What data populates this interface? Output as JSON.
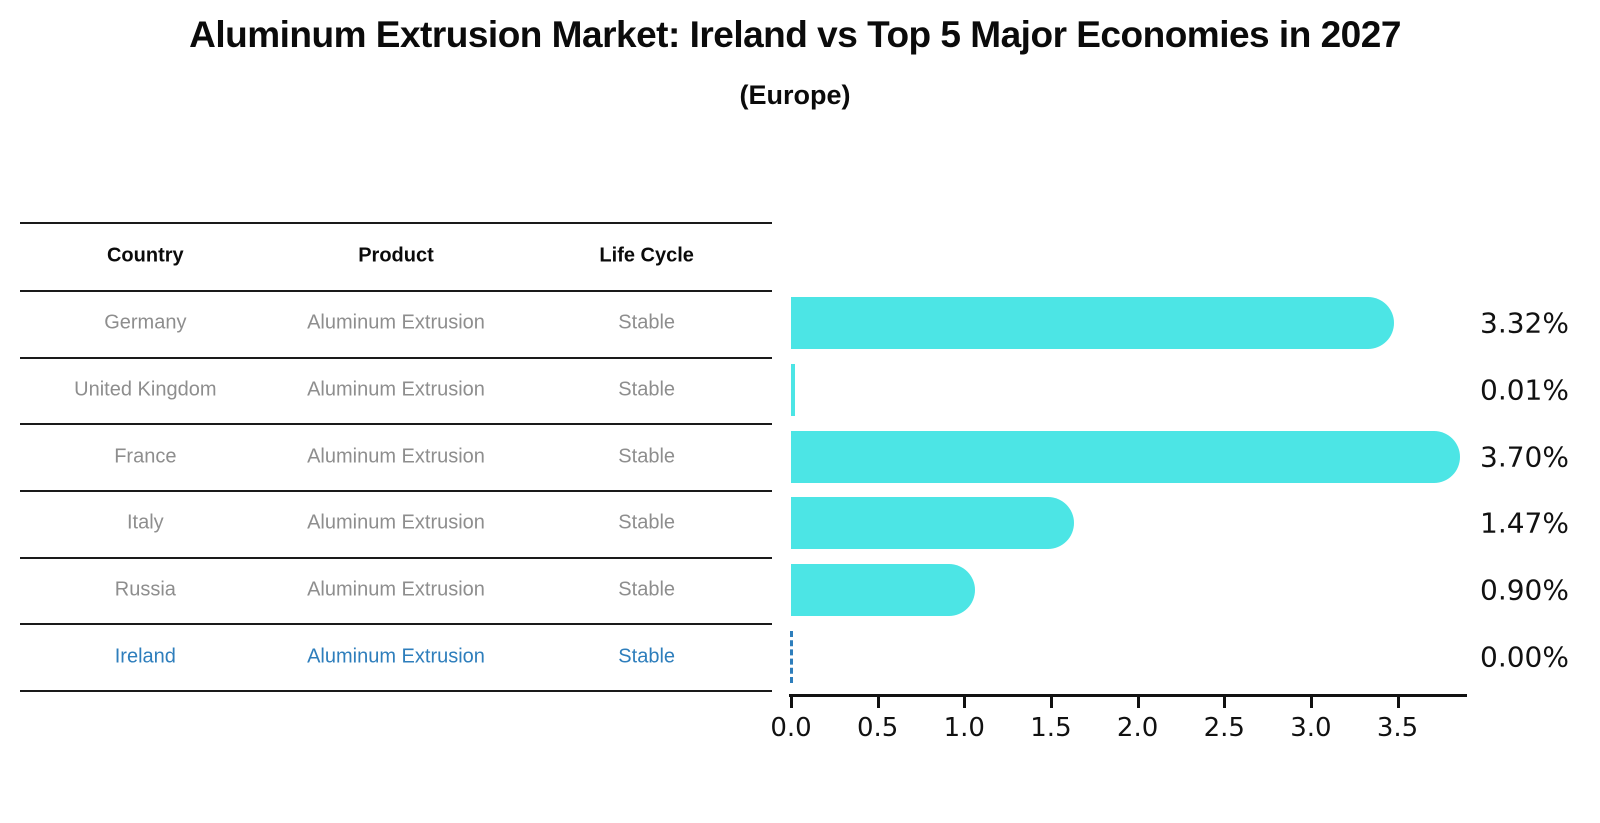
{
  "header": {
    "title": "Aluminum Extrusion Market: Ireland vs Top 5 Major Economies in 2027",
    "subtitle": "(Europe)"
  },
  "table": {
    "columns": [
      "Country",
      "Product",
      "Life Cycle"
    ],
    "rows": [
      {
        "country": "Germany",
        "product": "Aluminum Extrusion",
        "life_cycle": "Stable",
        "highlight": false
      },
      {
        "country": "United Kingdom",
        "product": "Aluminum Extrusion",
        "life_cycle": "Stable",
        "highlight": false
      },
      {
        "country": "France",
        "product": "Aluminum Extrusion",
        "life_cycle": "Stable",
        "highlight": false
      },
      {
        "country": "Italy",
        "product": "Aluminum Extrusion",
        "life_cycle": "Stable",
        "highlight": false
      },
      {
        "country": "Russia",
        "product": "Aluminum Extrusion",
        "life_cycle": "Stable",
        "highlight": true
      }
    ],
    "highlight_row": {
      "country": "Ireland",
      "product": "Aluminum Extrusion",
      "life_cycle": "Stable"
    }
  },
  "chart_data": {
    "type": "bar",
    "orientation": "horizontal",
    "title": "Aluminum Extrusion Market: Ireland vs Top 5 Major Economies in 2027 (Europe)",
    "categories": [
      "Germany",
      "United Kingdom",
      "France",
      "Italy",
      "Russia",
      "Ireland"
    ],
    "values": [
      3.32,
      0.01,
      3.7,
      1.47,
      0.9,
      0.0
    ],
    "value_labels": [
      "3.32%",
      "0.01%",
      "3.70%",
      "1.47%",
      "0.90%",
      "0.00%"
    ],
    "x_ticks": [
      0.0,
      0.5,
      1.0,
      1.5,
      2.0,
      2.5,
      3.0,
      3.5
    ],
    "x_tick_labels": [
      "0.0",
      "0.5",
      "1.0",
      "1.5",
      "2.0",
      "2.5",
      "3.0",
      "3.5"
    ],
    "xlim": [
      0,
      3.9
    ],
    "grid": false,
    "legend": false,
    "highlight_index": 5,
    "bar_color": "#4ce5e5",
    "highlight_color": "#2e7ebc"
  },
  "colors": {
    "bar": "#4ce5e5",
    "highlight_text": "#2e7ebc",
    "row_text": "#8e8e8e",
    "line": "#1a1a1a"
  }
}
